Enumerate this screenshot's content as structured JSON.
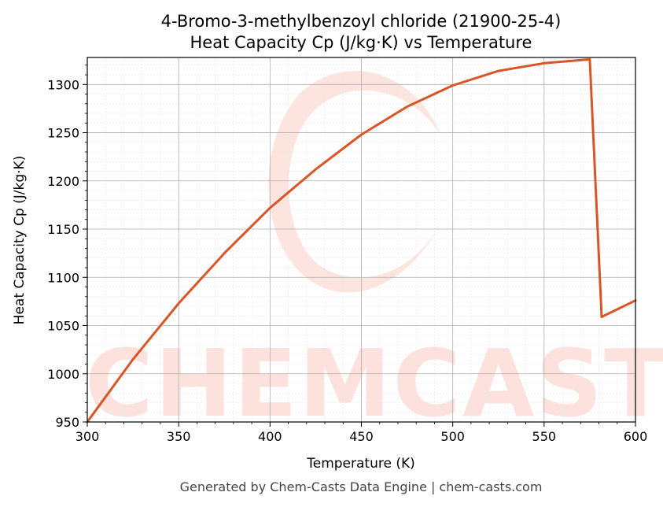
{
  "chart_data": {
    "type": "line",
    "title_line1": "4-Bromo-3-methylbenzoyl chloride (21900-25-4)",
    "title_line2": "Heat Capacity Cp (J/kg·K) vs Temperature",
    "xlabel": "Temperature (K)",
    "ylabel": "Heat Capacity Cp (J/kg·K)",
    "xlim": [
      300,
      600
    ],
    "ylim": [
      950,
      1328
    ],
    "xticks": [
      300,
      350,
      400,
      450,
      500,
      550,
      600
    ],
    "yticks": [
      950,
      1000,
      1050,
      1100,
      1150,
      1200,
      1250,
      1300
    ],
    "grid": true,
    "series": [
      {
        "color": "#d95525",
        "x": [
          300,
          325,
          350,
          375,
          400,
          425,
          450,
          475,
          500,
          525,
          550,
          575,
          581.5,
          600
        ],
        "y": [
          950,
          1015,
          1073,
          1125,
          1172,
          1212,
          1248,
          1277,
          1299,
          1314,
          1322,
          1326,
          1059,
          1076
        ]
      }
    ]
  },
  "watermark": {
    "text": "CHEMCASTS",
    "color": "#fde1dc"
  },
  "footer": "Generated by Chem-Casts Data Engine | chem-casts.com"
}
